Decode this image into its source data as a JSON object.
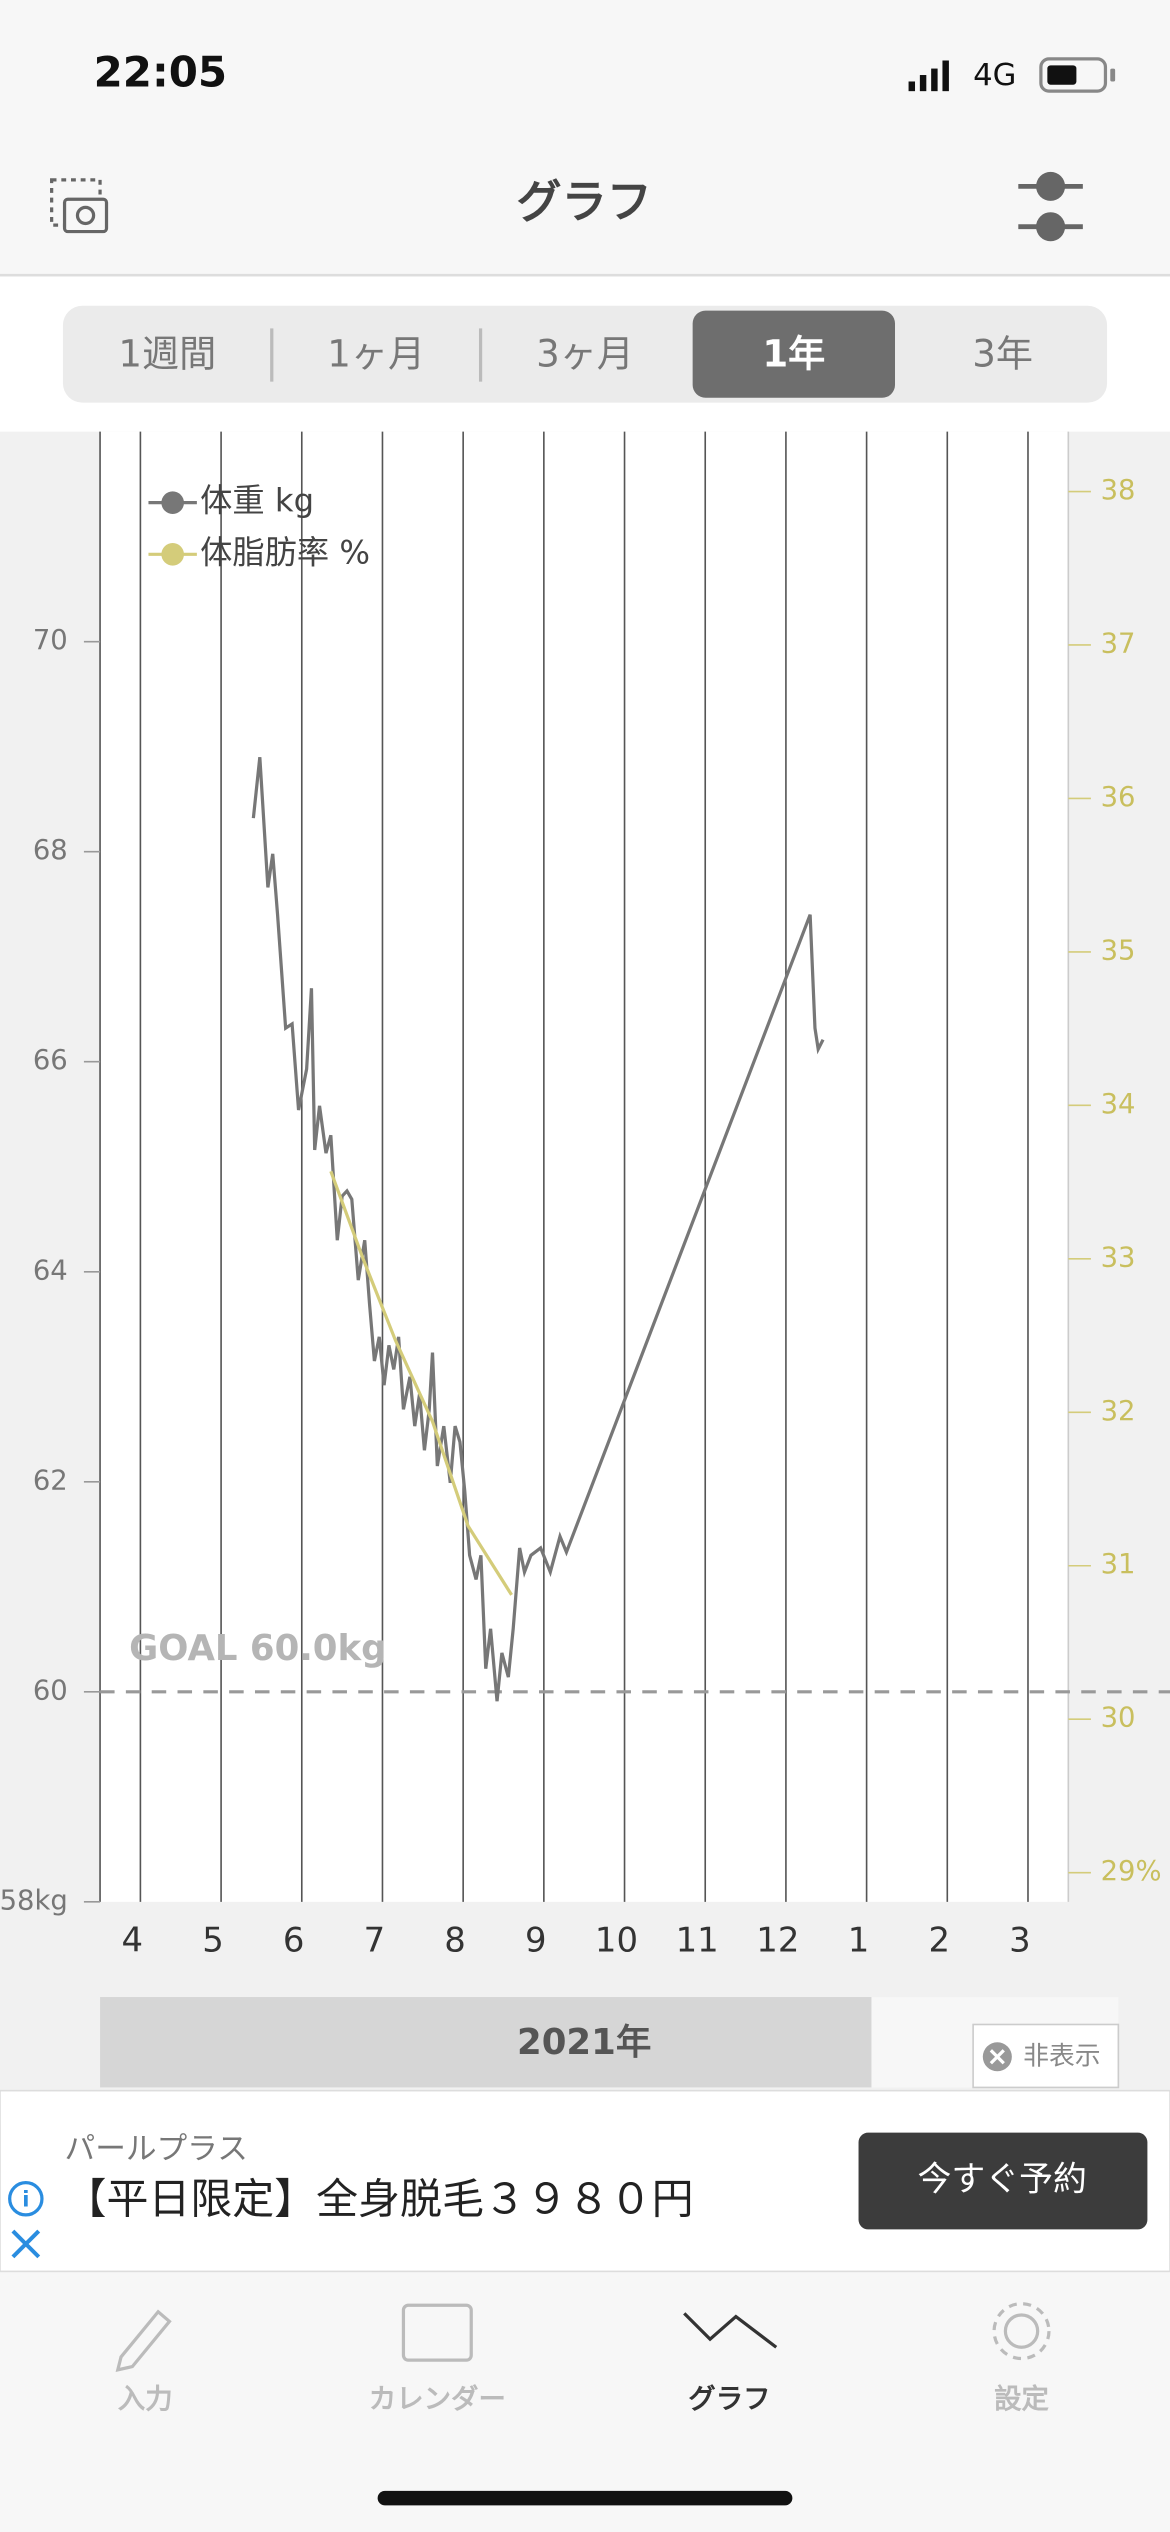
{
  "status_bar": {
    "time": "22:05",
    "network": "4G"
  },
  "header": {
    "title": "グラフ"
  },
  "period_tabs": {
    "items": [
      "1週間",
      "1ヶ月",
      "3ヶ月",
      "1年",
      "3年"
    ],
    "selected": 3
  },
  "chart_data": {
    "type": "line",
    "xlim": [
      3.5,
      15.5
    ],
    "xticks": [
      4,
      5,
      6,
      7,
      8,
      9,
      10,
      11,
      12,
      {
        "value": 13,
        "label": "1"
      },
      {
        "value": 14,
        "label": "2"
      },
      {
        "value": 15,
        "label": "3"
      }
    ],
    "x_period_label": "2021年",
    "ylim": [
      58,
      72
    ],
    "yticks": [
      {
        "value": 58,
        "label": "58kg"
      },
      60,
      62,
      64,
      66,
      68,
      70
    ],
    "y2lim": [
      28.81,
      38.39
    ],
    "y2ticks": [
      {
        "value": 29,
        "label": "29%"
      },
      30,
      31,
      32,
      33,
      34,
      35,
      36,
      37,
      38
    ],
    "grid": true,
    "legend": "top-left",
    "goal": {
      "value": 60,
      "label": "GOAL 60.0kg"
    },
    "series": [
      {
        "name": "体重 kg",
        "color": "#777777",
        "x": [
          5.4,
          5.48,
          5.58,
          5.64,
          5.7,
          5.8,
          5.88,
          5.96,
          6.06,
          6.12,
          6.16,
          6.22,
          6.3,
          6.36,
          6.44,
          6.5,
          6.56,
          6.62,
          6.7,
          6.78,
          6.84,
          6.9,
          6.96,
          7.02,
          7.08,
          7.14,
          7.2,
          7.26,
          7.34,
          7.4,
          7.46,
          7.52,
          7.58,
          7.62,
          7.68,
          7.76,
          7.84,
          7.9,
          7.96,
          8.02,
          8.08,
          8.16,
          8.22,
          8.28,
          8.34,
          8.42,
          8.48,
          8.56,
          8.62,
          8.7,
          8.76,
          8.84,
          8.96,
          9.08,
          9.2,
          9.28,
          12.3,
          12.36,
          12.4,
          12.46
        ],
        "values": [
          68.32,
          68.9,
          67.66,
          67.98,
          67.4,
          66.32,
          66.36,
          65.54,
          65.93,
          66.7,
          65.16,
          65.58,
          65.13,
          65.3,
          64.3,
          64.72,
          64.77,
          64.69,
          63.92,
          64.3,
          63.69,
          63.15,
          63.38,
          62.92,
          63.3,
          63.07,
          63.38,
          62.69,
          63.0,
          62.53,
          62.84,
          62.3,
          62.69,
          63.23,
          62.15,
          62.53,
          61.99,
          62.53,
          62.38,
          61.91,
          61.3,
          61.07,
          61.3,
          60.22,
          60.6,
          59.91,
          60.37,
          60.14,
          60.6,
          61.37,
          61.14,
          61.3,
          61.37,
          61.14,
          61.48,
          61.33,
          67.4,
          66.32,
          66.12,
          66.21
        ]
      },
      {
        "name": "体脂肪率 %",
        "color": "#d4cc7a",
        "axis": "y2",
        "x": [
          6.36,
          6.76,
          7.16,
          7.62,
          8.06,
          8.6
        ],
        "values": [
          33.57,
          33.0,
          32.47,
          31.94,
          31.26,
          30.81
        ]
      }
    ]
  },
  "ad": {
    "hide": "非表示",
    "advertiser": "パールプラス",
    "text": "【平日限定】全身脱毛３９８０円",
    "button": "今すぐ予約"
  },
  "tab_bar": {
    "items": [
      "入力",
      "カレンダー",
      "グラフ",
      "設定"
    ],
    "selected": 2
  }
}
